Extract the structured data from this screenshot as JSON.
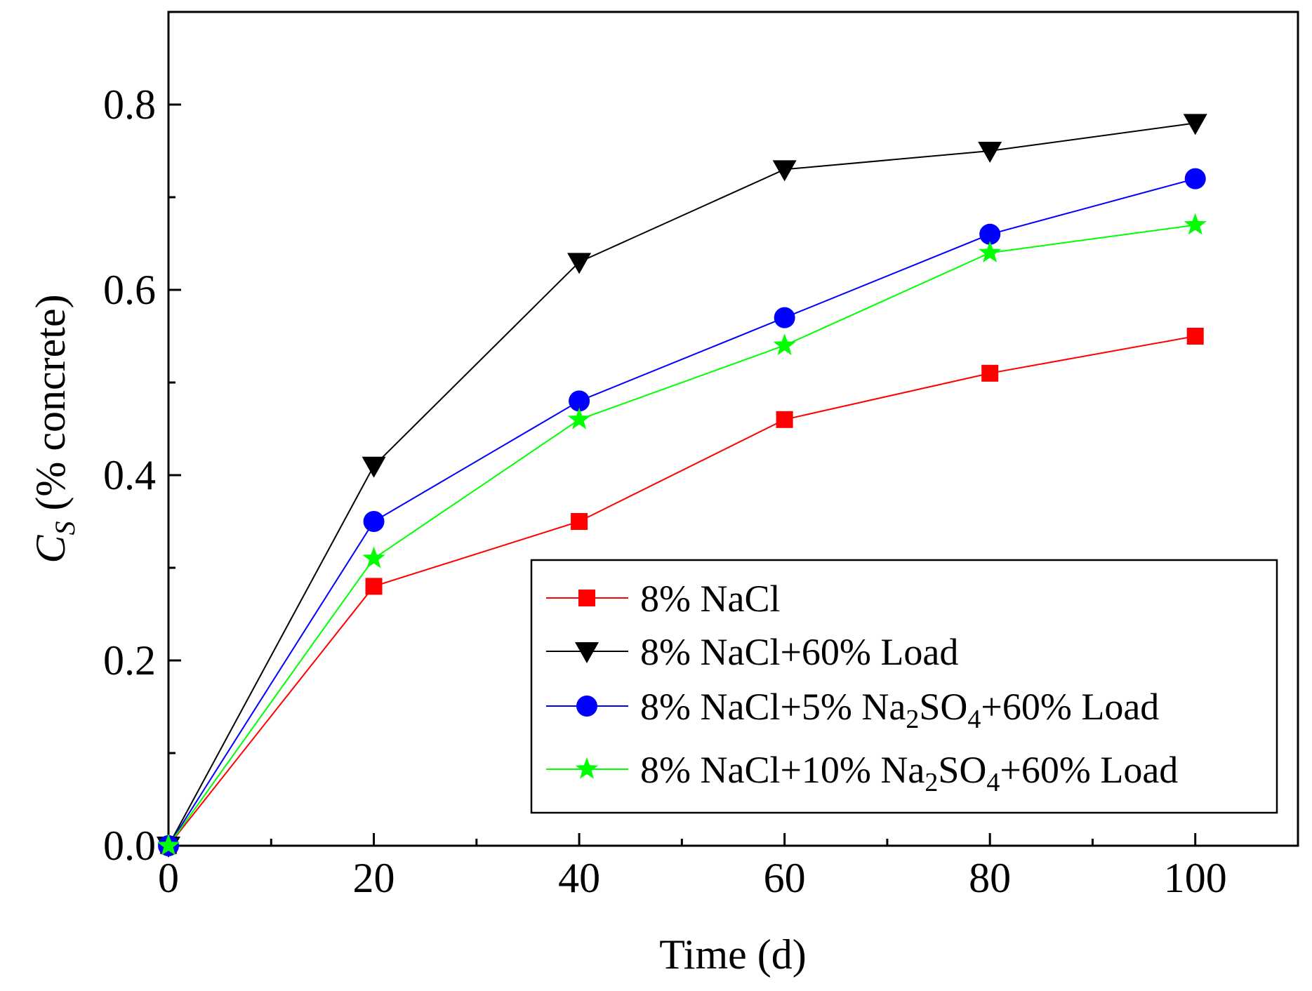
{
  "chart_data": {
    "type": "line",
    "title": "",
    "xlabel": "Time (d)",
    "ylabel": {
      "symbol": "C",
      "subscript": "S",
      "text": " (% concrete)"
    },
    "xlim": [
      0,
      110
    ],
    "ylim": [
      0,
      0.9
    ],
    "x_ticks": [
      0,
      20,
      40,
      60,
      80,
      100
    ],
    "x_tick_labels": [
      "0",
      "20",
      "40",
      "60",
      "80",
      "100"
    ],
    "y_ticks": [
      0.0,
      0.2,
      0.4,
      0.6,
      0.8
    ],
    "y_tick_labels": [
      "0.0",
      "0.2",
      "0.4",
      "0.6",
      "0.8"
    ],
    "grid": false,
    "legend_position": "bottom-right",
    "x": [
      0,
      20,
      40,
      60,
      80,
      100
    ],
    "series": [
      {
        "name": "8% NaCl",
        "color": "#ff0000",
        "marker": "square",
        "legend": [
          "8% NaCl"
        ],
        "values": [
          0.0,
          0.28,
          0.35,
          0.46,
          0.51,
          0.55
        ]
      },
      {
        "name": "8% NaCl+60% Load",
        "color": "#000000",
        "marker": "triangle-down",
        "legend": [
          "8% NaCl+60% Load"
        ],
        "values": [
          0.0,
          0.41,
          0.63,
          0.73,
          0.75,
          0.78
        ]
      },
      {
        "name": "8% NaCl+5% Na2SO4+60% Load",
        "color": "#0000ff",
        "marker": "circle",
        "legend": [
          "8% NaCl+5% Na",
          "2",
          "SO",
          "4",
          "+60% Load"
        ],
        "values": [
          0.0,
          0.35,
          0.48,
          0.57,
          0.66,
          0.72
        ]
      },
      {
        "name": "8% NaCl+10% Na2SO4+60% Load",
        "color": "#00ff00",
        "marker": "star",
        "legend": [
          "8% NaCl+10% Na",
          "2",
          "SO",
          "4",
          "+60% Load"
        ],
        "values": [
          0.0,
          0.31,
          0.46,
          0.54,
          0.64,
          0.67
        ]
      }
    ]
  }
}
